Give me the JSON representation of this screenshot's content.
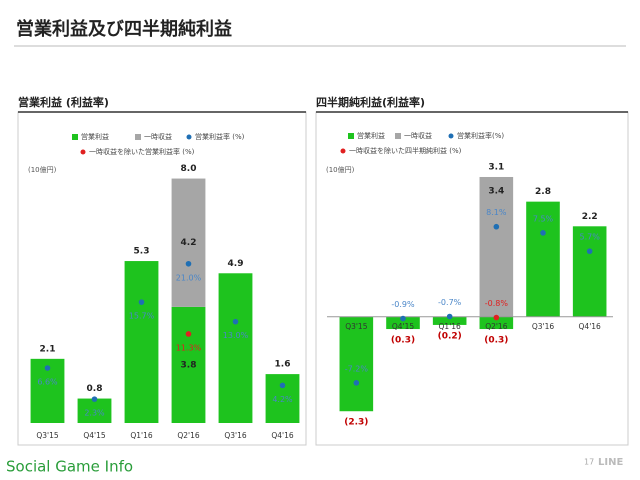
{
  "title": "営業利益及び四半期純利益",
  "chart_data": [
    {
      "type": "bar",
      "title": "営業利益 (利益率)",
      "unit": "(10億円)",
      "categories": [
        "Q3'15",
        "Q4'15",
        "Q1'16",
        "Q2'16",
        "Q3'16",
        "Q4'16"
      ],
      "ylim": [
        0,
        9
      ],
      "y2lim": [
        -1,
        37
      ],
      "series": [
        {
          "name": "営業利益",
          "color": "#1ec31e",
          "values": [
            2.1,
            0.8,
            5.3,
            3.8,
            4.9,
            1.6
          ]
        },
        {
          "name": "一時収益",
          "color": "#a6a6a6",
          "values": [
            null,
            null,
            null,
            4.2,
            null,
            null
          ]
        },
        {
          "name": "営業利益率 (%)",
          "color": "#1f6fb4",
          "type": "scatter",
          "axis": "y2",
          "values": [
            6.6,
            2.3,
            15.7,
            21.0,
            13.0,
            4.2
          ],
          "value_labels": [
            "6.6%",
            "2.3%",
            "15.7%",
            "21.0%",
            "13.0%",
            "4.2%"
          ]
        },
        {
          "name": "一時収益を除いた営業利益率 (%)",
          "color": "#e02020",
          "type": "scatter",
          "axis": "y2",
          "values": [
            null,
            null,
            null,
            11.3,
            null,
            null
          ],
          "value_labels": [
            null,
            null,
            null,
            "11.3%",
            null,
            null
          ]
        }
      ],
      "totals": [
        null,
        null,
        null,
        8.0,
        null,
        null
      ],
      "total_labels": [
        null,
        null,
        null,
        "8.0",
        null,
        null
      ]
    },
    {
      "type": "bar",
      "title": "四半期純利益(利益率)",
      "unit": "(10億円)",
      "categories": [
        "Q3'15",
        "Q4'15",
        "Q1'16",
        "Q2'16",
        "Q3'16",
        "Q4'16"
      ],
      "ylim": [
        -3,
        4.3
      ],
      "y2lim": [
        -12.8,
        16.6
      ],
      "series": [
        {
          "name": "営業利益",
          "color": "#1ec31e",
          "values": [
            -2.3,
            -0.3,
            -0.2,
            -0.3,
            2.8,
            2.2
          ],
          "value_labels": [
            "(2.3)",
            "(0.3)",
            "(0.2)",
            "(0.3)",
            "2.8",
            "2.2"
          ]
        },
        {
          "name": "一時収益",
          "color": "#a6a6a6",
          "values": [
            null,
            null,
            null,
            3.4,
            null,
            null
          ]
        },
        {
          "name": "営業利益率(%)",
          "color": "#1f6fb4",
          "type": "scatter",
          "axis": "y2",
          "values": [
            -7.2,
            -0.9,
            -0.7,
            8.1,
            7.5,
            5.7
          ],
          "value_labels": [
            "-7.2%",
            "-0.9%",
            "-0.7%",
            "8.1%",
            "7.5%",
            "5.7%"
          ]
        },
        {
          "name": "一時収益を除いた四半期純利益 (%)",
          "color": "#e02020",
          "type": "scatter",
          "axis": "y2",
          "values": [
            null,
            null,
            null,
            -0.8,
            null,
            null
          ],
          "value_labels": [
            null,
            null,
            null,
            "-0.8%",
            null,
            null
          ]
        }
      ],
      "totals": [
        null,
        null,
        null,
        3.1,
        null,
        null
      ]
    }
  ],
  "footer": {
    "watermark": "Social Game Info",
    "page": "17",
    "logo": "LINE"
  }
}
